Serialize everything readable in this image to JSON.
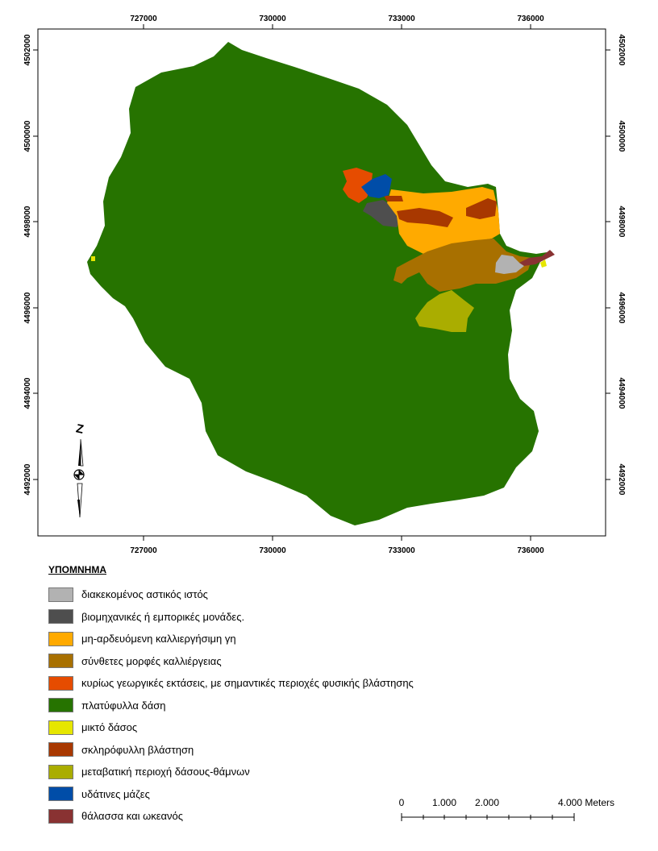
{
  "map": {
    "x_ticks": [
      "727000",
      "730000",
      "733000",
      "736000"
    ],
    "y_ticks": [
      "4502000",
      "4500000",
      "4498000",
      "4496000",
      "4494000",
      "4492000"
    ],
    "north_label": "Z"
  },
  "legend": {
    "title": "ΥΠΟΜΝΗΜΑ",
    "items": [
      {
        "label": "διακεκομένος αστικός ιστός",
        "color": "#b2b2b2"
      },
      {
        "label": "βιομηχανικές ή εμπορικές μονάδες.",
        "color": "#4e4e4e"
      },
      {
        "label": "μη-αρδευόμενη καλλιεργήσιμη γη",
        "color": "#ffaa00"
      },
      {
        "label": "σύνθετες μορφές καλλιέργειας",
        "color": "#a87000"
      },
      {
        "label": "κυρίως γεωργικές εκτάσεις, με σημαντικές περιοχές φυσικής βλάστησης",
        "color": "#e64c00"
      },
      {
        "label": "πλατύφυλλα δάση",
        "color": "#267300"
      },
      {
        "label": "μικτό δάσος",
        "color": "#e6e600"
      },
      {
        "label": "σκληρόφυλλη βλάστηση",
        "color": "#a83800"
      },
      {
        "label": "μεταβατική περιοχή δάσους-θάμνων",
        "color": "#aaad00"
      },
      {
        "label": "υδάτινες μάζες",
        "color": "#004da8"
      },
      {
        "label": "θάλασσα και ωκεανός",
        "color": "#893232"
      }
    ]
  },
  "scalebar": {
    "labels": [
      "0",
      "1.000",
      "2.000",
      "4.000 Meters"
    ]
  }
}
